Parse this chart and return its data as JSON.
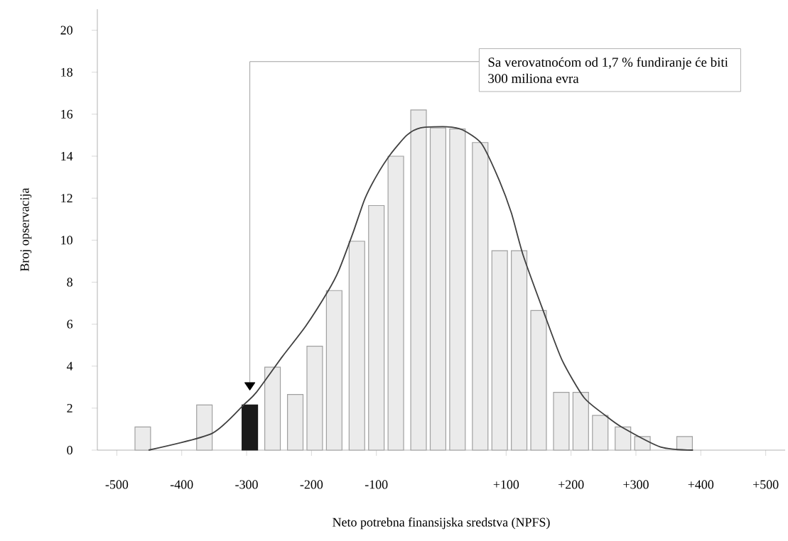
{
  "chart_data": {
    "type": "bar",
    "xlabel": "Neto potrebna finansijska sredstva (NPFS)",
    "ylabel": "Broj opservacija",
    "xlim": [
      -530,
      530
    ],
    "ylim": [
      0,
      21
    ],
    "xticks": [
      {
        "value": -500,
        "label": "-500"
      },
      {
        "value": -400,
        "label": "-400"
      },
      {
        "value": -300,
        "label": "-300"
      },
      {
        "value": -200,
        "label": "-200"
      },
      {
        "value": -100,
        "label": "-100"
      },
      {
        "value": 100,
        "label": "+100"
      },
      {
        "value": 200,
        "label": "+200"
      },
      {
        "value": 300,
        "label": "+300"
      },
      {
        "value": 400,
        "label": "+400"
      },
      {
        "value": 500,
        "label": "+500"
      }
    ],
    "yticks": [
      0,
      2,
      4,
      6,
      8,
      10,
      12,
      14,
      16,
      18,
      20
    ],
    "series": [
      {
        "x": [
          -460,
          -365,
          -295,
          -260,
          -225,
          -195,
          -165,
          -130,
          -100,
          -70,
          -35,
          -5,
          25,
          60,
          90,
          120,
          150,
          185,
          215,
          245,
          280,
          310,
          375
        ],
        "values": [
          1.1,
          2.15,
          2.15,
          3.95,
          2.65,
          4.95,
          7.6,
          9.95,
          11.65,
          14.0,
          16.2,
          15.35,
          15.3,
          14.65,
          9.5,
          9.5,
          6.65,
          2.75,
          2.75,
          1.65,
          1.1,
          0.65,
          0.65
        ],
        "colors": [
          "#ebebeb",
          "#ebebeb",
          "#1a1a1a",
          "#ebebeb",
          "#ebebeb",
          "#ebebeb",
          "#ebebeb",
          "#ebebeb",
          "#ebebeb",
          "#ebebeb",
          "#ebebeb",
          "#ebebeb",
          "#ebebeb",
          "#ebebeb",
          "#ebebeb",
          "#ebebeb",
          "#ebebeb",
          "#ebebeb",
          "#ebebeb",
          "#ebebeb",
          "#ebebeb",
          "#ebebeb",
          "#ebebeb"
        ]
      },
      {
        "type": "line",
        "color": "#404040",
        "x": [
          -451,
          -353,
          -303,
          -285,
          -245,
          -209,
          -174,
          -158,
          -136,
          -118,
          -100,
          -78,
          -53,
          -32,
          9,
          33,
          62,
          88,
          108,
          126,
          157,
          186,
          220,
          253,
          278,
          338,
          388
        ],
        "values": [
          0,
          0.8,
          2.2,
          2.75,
          4.45,
          5.9,
          7.6,
          8.55,
          10.35,
          11.95,
          13.05,
          14.1,
          15.0,
          15.35,
          15.4,
          15.25,
          14.6,
          12.95,
          11.3,
          9.3,
          6.65,
          4.3,
          2.5,
          1.65,
          1.1,
          0.15,
          0
        ]
      }
    ],
    "annotations": [
      "Sa verovatnoćom od 1,7 % fundiranje će biti 300 miliona evra"
    ]
  }
}
